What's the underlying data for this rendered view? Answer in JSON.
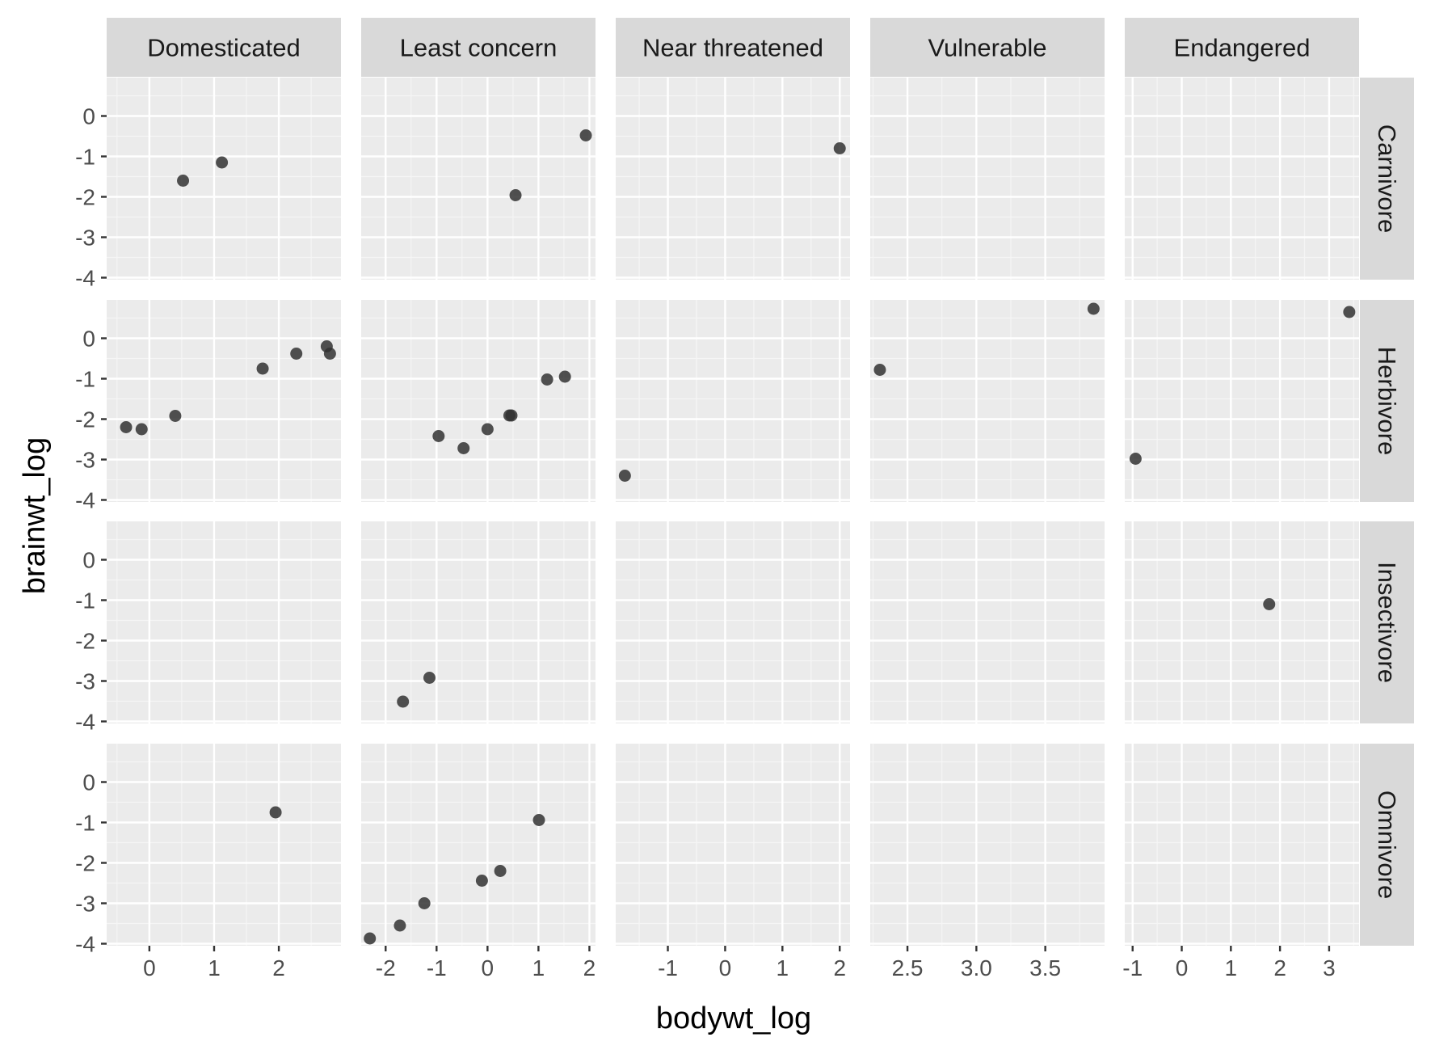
{
  "chart_data": {
    "type": "scatter",
    "xlabel": "bodywt_log",
    "ylabel": "brainwt_log",
    "columns": [
      "Domesticated",
      "Least concern",
      "Near threatened",
      "Vulnerable",
      "Endangered"
    ],
    "rows": [
      "Carnivore",
      "Herbivore",
      "Insectivore",
      "Omnivore"
    ],
    "scales_x": "free",
    "ylim": [
      -4.05,
      0.95
    ],
    "yticks": [
      0,
      -1,
      -2,
      -3,
      -4
    ],
    "grid": true,
    "legend": "none",
    "colors": {
      "panel_bg": "#EBEBEB",
      "grid_major": "#FFFFFF",
      "grid_minor": "#F5F5F5",
      "strip_bg": "#D9D9D9",
      "point": "#333333"
    },
    "column_axes": [
      {
        "xlim": [
          -0.66,
          2.96
        ],
        "xticks": [
          0,
          1,
          2
        ],
        "xtick_labels": [
          "0",
          "1",
          "2"
        ]
      },
      {
        "xlim": [
          -2.48,
          2.12
        ],
        "xticks": [
          -2,
          -1,
          0,
          1,
          2
        ],
        "xtick_labels": [
          "-2",
          "-1",
          "0",
          "1",
          "2"
        ]
      },
      {
        "xlim": [
          -1.91,
          2.18
        ],
        "xticks": [
          -1,
          0,
          1,
          2
        ],
        "xtick_labels": [
          "-1",
          "0",
          "1",
          "2"
        ]
      },
      {
        "xlim": [
          2.23,
          3.93
        ],
        "xticks": [
          2.5,
          3.0,
          3.5
        ],
        "xtick_labels": [
          "2.5",
          "3.0",
          "3.5"
        ]
      },
      {
        "xlim": [
          -1.16,
          3.61
        ],
        "xticks": [
          -1,
          0,
          1,
          2,
          3
        ],
        "xtick_labels": [
          "-1",
          "0",
          "1",
          "2",
          "3"
        ]
      }
    ],
    "panels": [
      {
        "column": "Domesticated",
        "row": "Carnivore",
        "x": [
          0.52,
          1.12
        ],
        "y": [
          -1.6,
          -1.15
        ]
      },
      {
        "column": "Least concern",
        "row": "Carnivore",
        "x": [
          0.55,
          1.93
        ],
        "y": [
          -1.96,
          -0.48
        ]
      },
      {
        "column": "Near threatened",
        "row": "Carnivore",
        "x": [
          2.0
        ],
        "y": [
          -0.8
        ]
      },
      {
        "column": "Vulnerable",
        "row": "Carnivore",
        "x": [],
        "y": []
      },
      {
        "column": "Endangered",
        "row": "Carnivore",
        "x": [],
        "y": []
      },
      {
        "column": "Domesticated",
        "row": "Herbivore",
        "x": [
          -0.36,
          -0.12,
          0.4,
          1.75,
          2.27,
          2.74,
          2.79
        ],
        "y": [
          -2.2,
          -2.25,
          -1.92,
          -0.75,
          -0.38,
          -0.2,
          -0.38
        ]
      },
      {
        "column": "Least concern",
        "row": "Herbivore",
        "x": [
          -0.96,
          -0.47,
          0.0,
          0.43,
          0.47,
          1.17,
          1.52
        ],
        "y": [
          -2.42,
          -2.72,
          -2.25,
          -1.91,
          -1.91,
          -1.02,
          -0.95
        ]
      },
      {
        "column": "Near threatened",
        "row": "Herbivore",
        "x": [
          -1.75
        ],
        "y": [
          -3.4
        ]
      },
      {
        "column": "Vulnerable",
        "row": "Herbivore",
        "x": [
          2.3,
          3.85
        ],
        "y": [
          -0.78,
          0.73
        ]
      },
      {
        "column": "Endangered",
        "row": "Herbivore",
        "x": [
          -0.94,
          3.41
        ],
        "y": [
          -2.98,
          0.65
        ]
      },
      {
        "column": "Domesticated",
        "row": "Insectivore",
        "x": [],
        "y": []
      },
      {
        "column": "Least concern",
        "row": "Insectivore",
        "x": [
          -1.66,
          -1.14
        ],
        "y": [
          -3.51,
          -2.92
        ]
      },
      {
        "column": "Near threatened",
        "row": "Insectivore",
        "x": [],
        "y": []
      },
      {
        "column": "Vulnerable",
        "row": "Insectivore",
        "x": [],
        "y": []
      },
      {
        "column": "Endangered",
        "row": "Insectivore",
        "x": [
          1.78
        ],
        "y": [
          -1.1
        ]
      },
      {
        "column": "Domesticated",
        "row": "Omnivore",
        "x": [
          1.95
        ],
        "y": [
          -0.75
        ]
      },
      {
        "column": "Least concern",
        "row": "Omnivore",
        "x": [
          -2.31,
          -1.72,
          -1.24,
          -0.11,
          0.25,
          1.01
        ],
        "y": [
          -3.87,
          -3.55,
          -3.0,
          -2.44,
          -2.2,
          -0.94
        ]
      },
      {
        "column": "Near threatened",
        "row": "Omnivore",
        "x": [],
        "y": []
      },
      {
        "column": "Vulnerable",
        "row": "Omnivore",
        "x": [],
        "y": []
      },
      {
        "column": "Endangered",
        "row": "Omnivore",
        "x": [],
        "y": []
      }
    ]
  }
}
